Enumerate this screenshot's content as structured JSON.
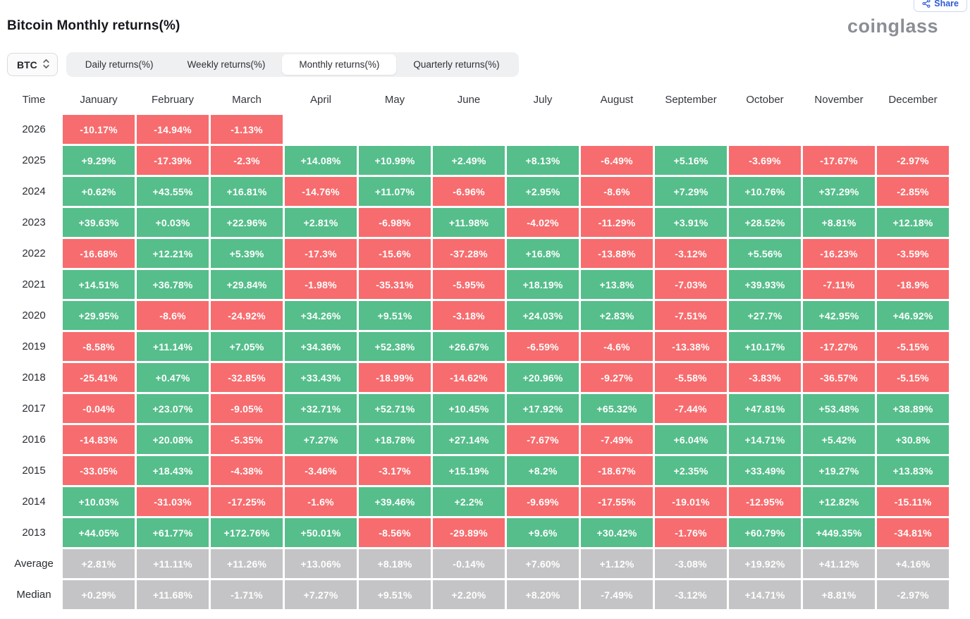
{
  "header": {
    "title": "Bitcoin Monthly returns(%)",
    "logo": "coinglass",
    "share_label": "Share"
  },
  "toolbar": {
    "coin": "BTC",
    "tabs": [
      {
        "label": "Daily returns(%)",
        "active": false
      },
      {
        "label": "Weekly returns(%)",
        "active": false
      },
      {
        "label": "Monthly returns(%)",
        "active": true
      },
      {
        "label": "Quarterly returns(%)",
        "active": false
      }
    ]
  },
  "colors": {
    "up": "#55be8b",
    "down": "#f76c6e",
    "summary": "#c4c4c6",
    "accent_blue": "#2c5cd5"
  },
  "table": {
    "time_header": "Time",
    "months": [
      "January",
      "February",
      "March",
      "April",
      "May",
      "June",
      "July",
      "August",
      "September",
      "October",
      "November",
      "December"
    ],
    "rows": [
      {
        "label": "2026",
        "type": "year",
        "values": [
          "-10.17%",
          "-14.94%",
          "-1.13%",
          null,
          null,
          null,
          null,
          null,
          null,
          null,
          null,
          null
        ]
      },
      {
        "label": "2025",
        "type": "year",
        "values": [
          "+9.29%",
          "-17.39%",
          "-2.3%",
          "+14.08%",
          "+10.99%",
          "+2.49%",
          "+8.13%",
          "-6.49%",
          "+5.16%",
          "-3.69%",
          "-17.67%",
          "-2.97%"
        ]
      },
      {
        "label": "2024",
        "type": "year",
        "values": [
          "+0.62%",
          "+43.55%",
          "+16.81%",
          "-14.76%",
          "+11.07%",
          "-6.96%",
          "+2.95%",
          "-8.6%",
          "+7.29%",
          "+10.76%",
          "+37.29%",
          "-2.85%"
        ]
      },
      {
        "label": "2023",
        "type": "year",
        "values": [
          "+39.63%",
          "+0.03%",
          "+22.96%",
          "+2.81%",
          "-6.98%",
          "+11.98%",
          "-4.02%",
          "-11.29%",
          "+3.91%",
          "+28.52%",
          "+8.81%",
          "+12.18%"
        ]
      },
      {
        "label": "2022",
        "type": "year",
        "values": [
          "-16.68%",
          "+12.21%",
          "+5.39%",
          "-17.3%",
          "-15.6%",
          "-37.28%",
          "+16.8%",
          "-13.88%",
          "-3.12%",
          "+5.56%",
          "-16.23%",
          "-3.59%"
        ]
      },
      {
        "label": "2021",
        "type": "year",
        "values": [
          "+14.51%",
          "+36.78%",
          "+29.84%",
          "-1.98%",
          "-35.31%",
          "-5.95%",
          "+18.19%",
          "+13.8%",
          "-7.03%",
          "+39.93%",
          "-7.11%",
          "-18.9%"
        ]
      },
      {
        "label": "2020",
        "type": "year",
        "values": [
          "+29.95%",
          "-8.6%",
          "-24.92%",
          "+34.26%",
          "+9.51%",
          "-3.18%",
          "+24.03%",
          "+2.83%",
          "-7.51%",
          "+27.7%",
          "+42.95%",
          "+46.92%"
        ]
      },
      {
        "label": "2019",
        "type": "year",
        "values": [
          "-8.58%",
          "+11.14%",
          "+7.05%",
          "+34.36%",
          "+52.38%",
          "+26.67%",
          "-6.59%",
          "-4.6%",
          "-13.38%",
          "+10.17%",
          "-17.27%",
          "-5.15%"
        ]
      },
      {
        "label": "2018",
        "type": "year",
        "values": [
          "-25.41%",
          "+0.47%",
          "-32.85%",
          "+33.43%",
          "-18.99%",
          "-14.62%",
          "+20.96%",
          "-9.27%",
          "-5.58%",
          "-3.83%",
          "-36.57%",
          "-5.15%"
        ]
      },
      {
        "label": "2017",
        "type": "year",
        "values": [
          "-0.04%",
          "+23.07%",
          "-9.05%",
          "+32.71%",
          "+52.71%",
          "+10.45%",
          "+17.92%",
          "+65.32%",
          "-7.44%",
          "+47.81%",
          "+53.48%",
          "+38.89%"
        ]
      },
      {
        "label": "2016",
        "type": "year",
        "values": [
          "-14.83%",
          "+20.08%",
          "-5.35%",
          "+7.27%",
          "+18.78%",
          "+27.14%",
          "-7.67%",
          "-7.49%",
          "+6.04%",
          "+14.71%",
          "+5.42%",
          "+30.8%"
        ]
      },
      {
        "label": "2015",
        "type": "year",
        "values": [
          "-33.05%",
          "+18.43%",
          "-4.38%",
          "-3.46%",
          "-3.17%",
          "+15.19%",
          "+8.2%",
          "-18.67%",
          "+2.35%",
          "+33.49%",
          "+19.27%",
          "+13.83%"
        ]
      },
      {
        "label": "2014",
        "type": "year",
        "values": [
          "+10.03%",
          "-31.03%",
          "-17.25%",
          "-1.6%",
          "+39.46%",
          "+2.2%",
          "-9.69%",
          "-17.55%",
          "-19.01%",
          "-12.95%",
          "+12.82%",
          "-15.11%"
        ]
      },
      {
        "label": "2013",
        "type": "year",
        "values": [
          "+44.05%",
          "+61.77%",
          "+172.76%",
          "+50.01%",
          "-8.56%",
          "-29.89%",
          "+9.6%",
          "+30.42%",
          "-1.76%",
          "+60.79%",
          "+449.35%",
          "-34.81%"
        ]
      },
      {
        "label": "Average",
        "type": "summary",
        "values": [
          "+2.81%",
          "+11.11%",
          "+11.26%",
          "+13.06%",
          "+8.18%",
          "-0.14%",
          "+7.60%",
          "+1.12%",
          "-3.08%",
          "+19.92%",
          "+41.12%",
          "+4.16%"
        ]
      },
      {
        "label": "Median",
        "type": "summary",
        "values": [
          "+0.29%",
          "+11.68%",
          "-1.71%",
          "+7.27%",
          "+9.51%",
          "+2.20%",
          "+8.20%",
          "-7.49%",
          "-3.12%",
          "+14.71%",
          "+8.81%",
          "-2.97%"
        ]
      }
    ]
  }
}
